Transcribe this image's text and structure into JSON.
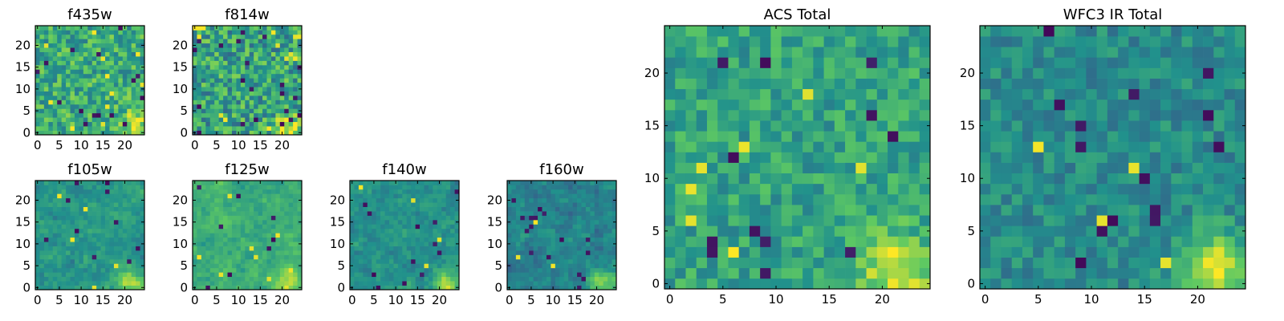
{
  "figure": {
    "colormap": [
      "#440154",
      "#3b528b",
      "#21918c",
      "#5ec962",
      "#fde725"
    ]
  },
  "chart_data": [
    {
      "type": "heatmap",
      "title": "f435w",
      "size": 25,
      "x_ticks": [
        0,
        5,
        10,
        15,
        20
      ],
      "y_ticks": [
        0,
        5,
        10,
        15,
        20
      ],
      "xlim": [
        -0.5,
        24.5
      ],
      "ylim": [
        -0.5,
        24.5
      ],
      "texture": "fine",
      "seed": 11,
      "mean": 0.62,
      "spread": 0.42,
      "hotspot": {
        "x": 22,
        "y": 1.5,
        "strength": 0.3
      },
      "dark_spots": 16,
      "bright_spots": 12
    },
    {
      "type": "heatmap",
      "title": "f814w",
      "size": 25,
      "x_ticks": [
        0,
        5,
        10,
        15,
        20
      ],
      "y_ticks": [
        0,
        5,
        10,
        15,
        20
      ],
      "xlim": [
        -0.5,
        24.5
      ],
      "ylim": [
        -0.5,
        24.5
      ],
      "texture": "fine",
      "seed": 23,
      "mean": 0.58,
      "spread": 0.48,
      "hotspot": {
        "x": 21.5,
        "y": 1,
        "strength": 0.38
      },
      "dark_spots": 22,
      "bright_spots": 14
    },
    {
      "type": "heatmap",
      "title": "f105w",
      "size": 25,
      "x_ticks": [
        0,
        5,
        10,
        15,
        20
      ],
      "y_ticks": [
        0,
        5,
        10,
        15,
        20
      ],
      "xlim": [
        -0.5,
        24.5
      ],
      "ylim": [
        -0.5,
        24.5
      ],
      "texture": "smooth",
      "seed": 37,
      "mean": 0.52,
      "spread": 0.34,
      "hotspot": {
        "x": 21.5,
        "y": 1.2,
        "strength": 0.38
      },
      "dark_spots": 10,
      "bright_spots": 5
    },
    {
      "type": "heatmap",
      "title": "f125w",
      "size": 25,
      "x_ticks": [
        0,
        5,
        10,
        15,
        20
      ],
      "y_ticks": [
        0,
        5,
        10,
        15,
        20
      ],
      "xlim": [
        -0.5,
        24.5
      ],
      "ylim": [
        -0.5,
        24.5
      ],
      "texture": "smooth",
      "seed": 41,
      "mean": 0.62,
      "spread": 0.32,
      "hotspot": {
        "x": 21.5,
        "y": 1.2,
        "strength": 0.3
      },
      "dark_spots": 8,
      "bright_spots": 9
    },
    {
      "type": "heatmap",
      "title": "f140w",
      "size": 25,
      "x_ticks": [
        0,
        5,
        10,
        15,
        20
      ],
      "y_ticks": [
        0,
        5,
        10,
        15,
        20
      ],
      "xlim": [
        -0.5,
        24.5
      ],
      "ylim": [
        -0.5,
        24.5
      ],
      "texture": "smooth",
      "seed": 53,
      "mean": 0.5,
      "spread": 0.32,
      "hotspot": {
        "x": 21.5,
        "y": 1.2,
        "strength": 0.36
      },
      "dark_spots": 12,
      "bright_spots": 4
    },
    {
      "type": "heatmap",
      "title": "f160w",
      "size": 25,
      "x_ticks": [
        0,
        5,
        10,
        15,
        20
      ],
      "y_ticks": [
        0,
        5,
        10,
        15,
        20
      ],
      "xlim": [
        -0.5,
        24.5
      ],
      "ylim": [
        -0.5,
        24.5
      ],
      "texture": "smooth",
      "seed": 67,
      "mean": 0.44,
      "spread": 0.34,
      "hotspot": {
        "x": 21.5,
        "y": 1.2,
        "strength": 0.4
      },
      "dark_spots": 16,
      "bright_spots": 3
    },
    {
      "type": "heatmap",
      "title": "ACS Total",
      "size": 25,
      "x_ticks": [
        0,
        5,
        10,
        15,
        20
      ],
      "y_ticks": [
        0,
        5,
        10,
        15,
        20
      ],
      "xlim": [
        -0.5,
        24.5
      ],
      "ylim": [
        -0.5,
        24.5
      ],
      "texture": "fine",
      "seed": 79,
      "mean": 0.58,
      "spread": 0.3,
      "hotspot": {
        "x": 21.5,
        "y": 1.5,
        "strength": 0.4
      },
      "dark_spots": 12,
      "bright_spots": 7
    },
    {
      "type": "heatmap",
      "title": "WFC3 IR Total",
      "size": 25,
      "x_ticks": [
        0,
        5,
        10,
        15,
        20
      ],
      "y_ticks": [
        0,
        5,
        10,
        15,
        20
      ],
      "xlim": [
        -0.5,
        24.5
      ],
      "ylim": [
        -0.5,
        24.5
      ],
      "texture": "fine",
      "seed": 97,
      "mean": 0.48,
      "spread": 0.24,
      "hotspot": {
        "x": 21.5,
        "y": 1.5,
        "strength": 0.48
      },
      "dark_spots": 14,
      "bright_spots": 4
    }
  ]
}
